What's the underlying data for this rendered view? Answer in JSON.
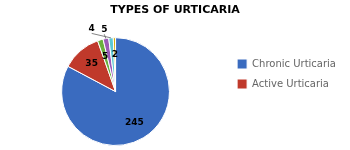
{
  "chart_data": {
    "type": "pie",
    "title": "TYPES OF URTICARIA",
    "categories": [
      "Chronic Urticaria",
      "Active Urticaria",
      null,
      null,
      null,
      null
    ],
    "values": [
      245,
      35,
      5,
      5,
      4,
      2
    ],
    "colors": [
      "#3a6bbf",
      "#c0392b",
      "#6aaf3d",
      "#9b59b6",
      "#5bc8d4",
      "#d4ac0d"
    ],
    "data_labels": true,
    "legend": "right"
  }
}
